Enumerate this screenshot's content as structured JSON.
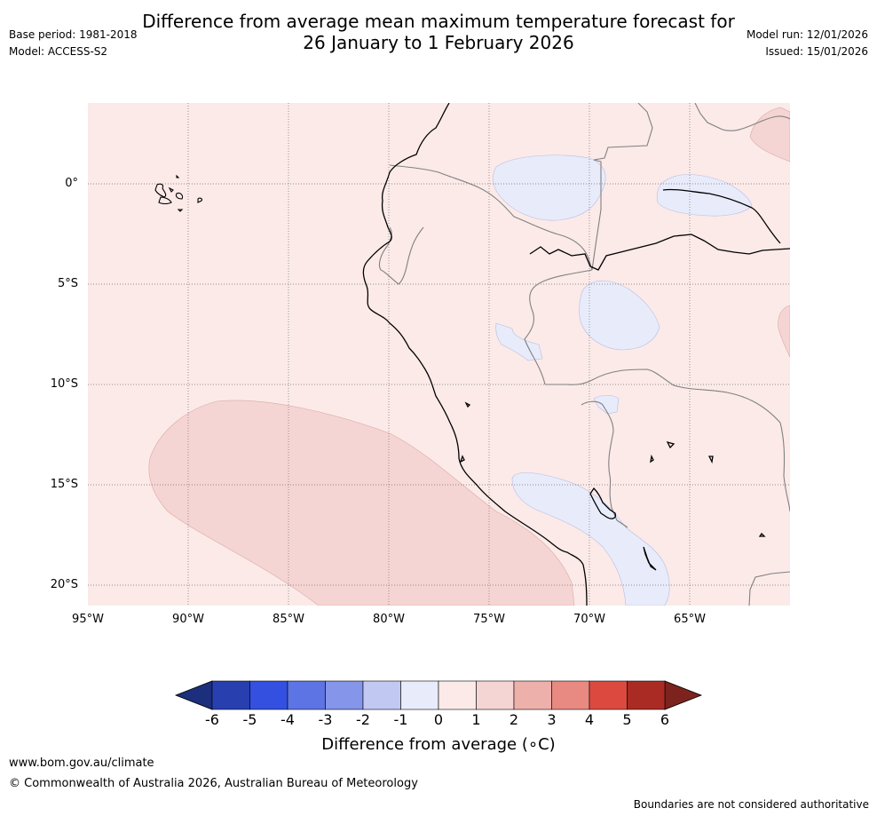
{
  "title": {
    "line1": "Difference from average mean maximum temperature forecast for",
    "line2": "26 January to 1 February 2026"
  },
  "meta": {
    "base_period": "Base period: 1981-2018",
    "model": "Model: ACCESS-S2",
    "model_run": "Model run: 12/01/2026",
    "issued": "Issued: 15/01/2026"
  },
  "map": {
    "lat_labels": [
      "0°",
      "5°S",
      "10°S",
      "15°S",
      "20°S"
    ],
    "lon_labels": [
      "95°W",
      "90°W",
      "85°W",
      "80°W",
      "75°W",
      "70°W",
      "65°W"
    ]
  },
  "colorbar": {
    "labels": [
      "-6",
      "-5",
      "-4",
      "-3",
      "-2",
      "-1",
      "0",
      "1",
      "2",
      "3",
      "4",
      "5",
      "6"
    ],
    "colors": [
      "#283fb0",
      "#3450e0",
      "#5c74e4",
      "#8595ea",
      "#c1c8f2",
      "#e8ebfa",
      "#fbeae8",
      "#f5d5d3",
      "#eeb0ab",
      "#e88a82",
      "#dc4a3f",
      "#aa2a24"
    ],
    "low_extend_color": "#1c2f7c",
    "high_extend_color": "#7c231e",
    "title": "Difference from average (∘C)"
  },
  "footer": {
    "website": "www.bom.gov.au/climate",
    "copyright": "© Commonwealth of Australia 2026, Australian Bureau of Meteorology",
    "disclaimer": "Boundaries are not considered authoritative"
  }
}
